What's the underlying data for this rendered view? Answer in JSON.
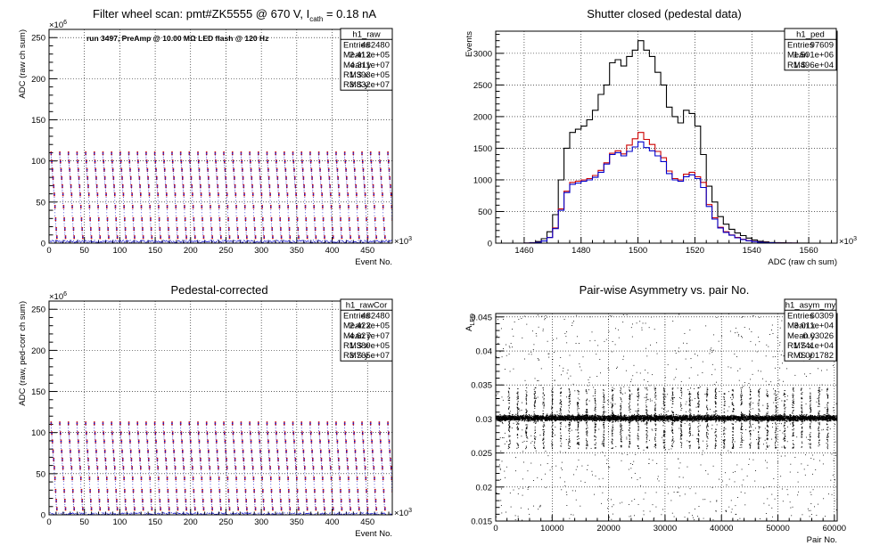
{
  "chart_data": [
    {
      "type": "scatter",
      "title": "Filter wheel scan: pmt#ZK5555 @   670 V, I",
      "title_sub": "cath",
      "title_tail": " = 0.18 nA",
      "annotation": "run 3497, PreAmp @ 10.00 MΩ LED flash @  120 Hz",
      "xlabel": "Event No.",
      "ylabel": "ADC (raw ch sum)",
      "x_multiplier": "×10",
      "x_multiplier_exp": "3",
      "y_multiplier": "×10",
      "y_multiplier_exp": "6",
      "xlim": [
        0,
        485
      ],
      "ylim": [
        0,
        260
      ],
      "xticks": [
        0,
        50,
        100,
        150,
        200,
        250,
        300,
        350,
        400,
        450
      ],
      "yticks": [
        0,
        50,
        100,
        150,
        200,
        250
      ],
      "grid": true,
      "stats": {
        "name": "h1_raw",
        "rows": [
          [
            "Entries",
            "482480"
          ],
          [
            "Mean x",
            "2.412e+05"
          ],
          [
            "Mean y",
            "4.311e+07"
          ],
          [
            "RMS x",
            "1.393e+05"
          ],
          [
            "RMS y",
            "3.832e+07"
          ]
        ]
      },
      "pattern": {
        "period": 12.2,
        "start": 2,
        "levels": [
          110,
          100,
          90,
          80,
          70,
          60,
          45,
          30,
          18,
          8
        ],
        "baseline": 1
      }
    },
    {
      "type": "line",
      "title": "Shutter closed (pedestal data)",
      "xlabel": "ADC (raw ch sum)",
      "ylabel": "Events",
      "x_multiplier": "×10",
      "x_multiplier_exp": "3",
      "xlim": [
        1450,
        1570
      ],
      "ylim": [
        0,
        3350
      ],
      "xticks": [
        1460,
        1480,
        1500,
        1520,
        1540,
        1560
      ],
      "yticks": [
        0,
        500,
        1000,
        1500,
        2000,
        2500,
        3000
      ],
      "grid": true,
      "stats": {
        "name": "h1_ped",
        "rows": [
          [
            "Entries",
            "97609"
          ],
          [
            "Mean",
            "1.501e+06"
          ],
          [
            "RMS",
            "1.496e+04"
          ]
        ]
      },
      "x": [
        1450,
        1452,
        1454,
        1456,
        1458,
        1460,
        1462,
        1464,
        1466,
        1468,
        1470,
        1472,
        1474,
        1476,
        1478,
        1480,
        1482,
        1484,
        1486,
        1488,
        1490,
        1492,
        1494,
        1496,
        1498,
        1500,
        1502,
        1504,
        1506,
        1508,
        1510,
        1512,
        1514,
        1516,
        1518,
        1520,
        1522,
        1524,
        1526,
        1528,
        1530,
        1532,
        1534,
        1536,
        1538,
        1540,
        1542,
        1544,
        1546,
        1548,
        1550,
        1552,
        1554,
        1556,
        1558,
        1560,
        1562,
        1564,
        1566,
        1568
      ],
      "series": [
        {
          "color": "#000000",
          "values": [
            0,
            0,
            0,
            0,
            0,
            2,
            8,
            25,
            70,
            180,
            450,
            1000,
            1500,
            1750,
            1800,
            1850,
            1950,
            2100,
            2350,
            2500,
            2850,
            2900,
            2800,
            2950,
            3050,
            3200,
            3050,
            2950,
            2700,
            2500,
            2150,
            2000,
            1900,
            2100,
            2050,
            1850,
            1400,
            900,
            650,
            420,
            300,
            220,
            160,
            120,
            80,
            50,
            30,
            20,
            10,
            8,
            5,
            3,
            2,
            1,
            1,
            0,
            0,
            0,
            0,
            0
          ]
        },
        {
          "color": "#cc0000",
          "values": [
            0,
            0,
            0,
            0,
            0,
            1,
            4,
            12,
            35,
            90,
            240,
            540,
            820,
            960,
            980,
            1000,
            1020,
            1070,
            1150,
            1270,
            1420,
            1460,
            1410,
            1550,
            1650,
            1750,
            1640,
            1560,
            1450,
            1350,
            1140,
            1020,
            1000,
            1090,
            1120,
            1050,
            960,
            610,
            400,
            250,
            180,
            130,
            90,
            60,
            40,
            25,
            15,
            10,
            5,
            3,
            2,
            1,
            1,
            0,
            0,
            0,
            0,
            0,
            0,
            0
          ]
        },
        {
          "color": "#0000cc",
          "values": [
            0,
            0,
            0,
            0,
            0,
            1,
            4,
            11,
            34,
            88,
            230,
            520,
            800,
            930,
            950,
            980,
            1000,
            1040,
            1120,
            1250,
            1400,
            1430,
            1380,
            1450,
            1520,
            1600,
            1510,
            1460,
            1380,
            1290,
            1100,
            1000,
            980,
            1050,
            1080,
            1020,
            880,
            580,
            380,
            240,
            170,
            125,
            85,
            58,
            38,
            24,
            14,
            9,
            5,
            3,
            2,
            1,
            1,
            0,
            0,
            0,
            0,
            0,
            0,
            0
          ]
        }
      ]
    },
    {
      "type": "scatter",
      "title": "Pedestal-corrected",
      "xlabel": "Event No.",
      "ylabel": "ADC (raw, ped-corr ch sum)",
      "x_multiplier": "×10",
      "x_multiplier_exp": "3",
      "y_multiplier": "×10",
      "y_multiplier_exp": "6",
      "xlim": [
        0,
        485
      ],
      "ylim": [
        0,
        260
      ],
      "xticks": [
        0,
        50,
        100,
        150,
        200,
        250,
        300,
        350,
        400,
        450
      ],
      "yticks": [
        0,
        50,
        100,
        150,
        200,
        250
      ],
      "grid": true,
      "stats": {
        "name": "h1_rawCor",
        "rows": [
          [
            "Entries",
            "482480"
          ],
          [
            "Mean x",
            "2.422e+05"
          ],
          [
            "Mean y",
            "4.627e+07"
          ],
          [
            "RMS x",
            "1.389e+05"
          ],
          [
            "RMS y",
            "3.765e+07"
          ]
        ]
      },
      "pattern": {
        "period": 12.2,
        "start": 2,
        "levels": [
          112,
          100,
          90,
          78,
          68,
          58,
          45,
          30,
          18,
          8
        ],
        "baseline": 0
      }
    },
    {
      "type": "scatter",
      "title": "Pair-wise Asymmetry vs. pair No.",
      "xlabel": "Pair No.",
      "ylabel": "A",
      "ylabel_sub": "LED",
      "xlim": [
        0,
        60500
      ],
      "ylim": [
        0.015,
        0.0455
      ],
      "xticks": [
        0,
        10000,
        20000,
        30000,
        40000,
        50000,
        60000
      ],
      "yticks": [
        0.015,
        0.02,
        0.025,
        0.03,
        0.035,
        0.04,
        0.045
      ],
      "grid": true,
      "stats": {
        "name": "h1_asym_my",
        "rows": [
          [
            "Entries",
            "60309"
          ],
          [
            "Mean x",
            "3.011e+04"
          ],
          [
            "Mean y",
            "0.03026"
          ],
          [
            "RMS x",
            "1.741e+04"
          ],
          [
            "RMS y",
            "0.001782"
          ]
        ]
      },
      "band": {
        "center": 0.0302,
        "halfwidth": 0.0005,
        "spike_period": 1525,
        "spike_start": 2300
      }
    }
  ]
}
